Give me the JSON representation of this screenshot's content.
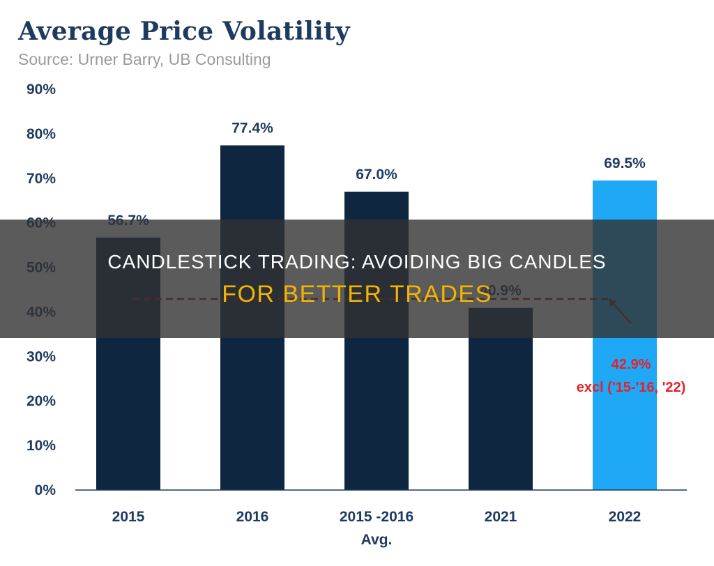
{
  "chart_data": {
    "type": "bar",
    "title": "Average Price Volatility",
    "subtitle": "Source: Urner Barry, UB Consulting",
    "categories": [
      "2015",
      "2016",
      "2015 -2016|Avg.",
      "2021",
      "2022"
    ],
    "values": [
      56.7,
      77.4,
      67.0,
      40.9,
      69.5
    ],
    "value_labels": [
      "56.7%",
      "77.4%",
      "67.0%",
      "40.9%",
      "69.5%"
    ],
    "bar_colors": [
      "#0e2640",
      "#0e2640",
      "#0e2640",
      "#0e2640",
      "#1ea8f5"
    ],
    "yticks": [
      "0%",
      "10%",
      "20%",
      "30%",
      "40%",
      "50%",
      "60%",
      "70%",
      "80%",
      "90%"
    ],
    "ylim": [
      0,
      90
    ],
    "grid": false,
    "reference_line": {
      "value": 42.9,
      "label_value": "42.9%",
      "label_note": "excl ('15-'16, '22)",
      "color": "#8b1a1a",
      "label_color": "#e8202a"
    }
  },
  "overlay": {
    "line1": "CANDLESTICK TRADING: AVOIDING BIG CANDLES",
    "line2": "FOR BETTER TRADES"
  }
}
